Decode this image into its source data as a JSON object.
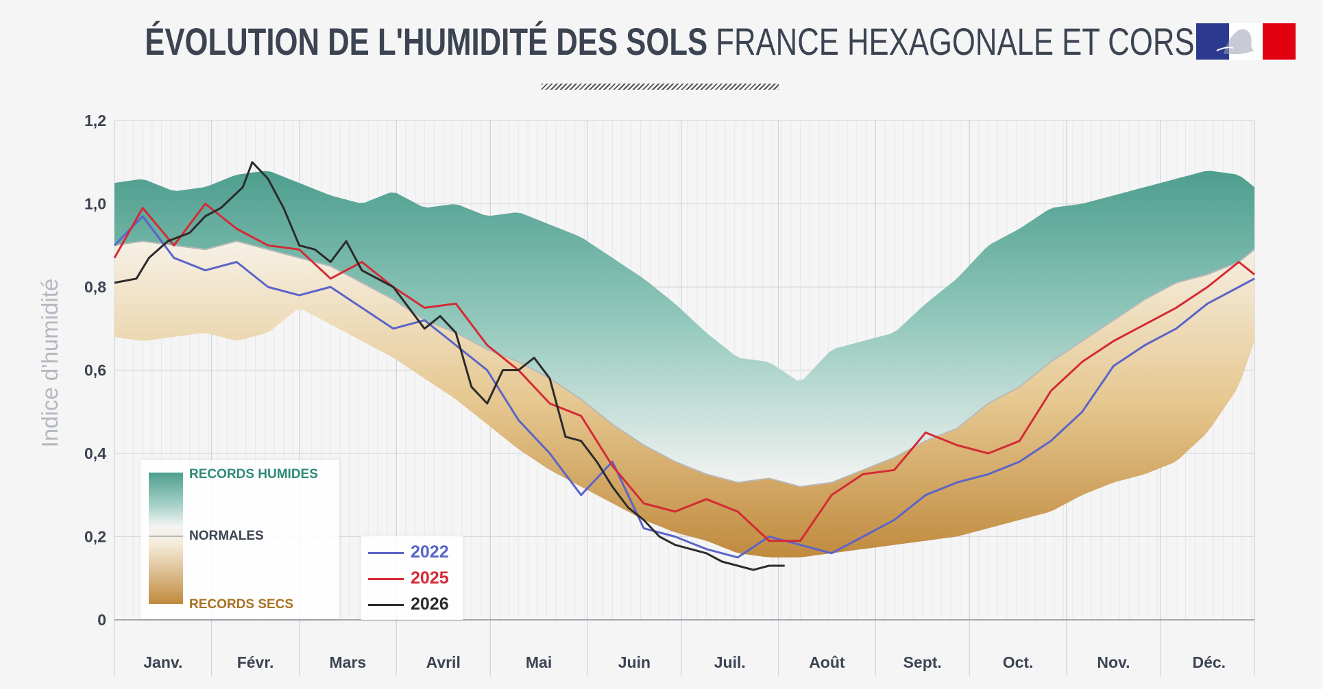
{
  "title": {
    "bold": "ÉVOLUTION DE L'HUMIDITÉ DES SOLS",
    "light": "FRANCE HEXAGONALE ET CORSE"
  },
  "colors": {
    "wet": "#4e9e8e",
    "dry": "#c08a3e",
    "normal": "#b9b9b9",
    "y2022": "#5b64c8",
    "y2025": "#d42a35",
    "y2026": "#2b2b2b",
    "flag_blue": "#2b3a8f",
    "flag_red": "#e1000f"
  },
  "legend_bands": {
    "wet": "RECORDS HUMIDES",
    "normal": "NORMALES",
    "dry": "RECORDS SECS"
  },
  "chart_data": {
    "type": "area",
    "ylabel": "Indice d'humidité",
    "ylim": [
      0,
      1.2
    ],
    "yticks": [
      "0",
      "0,2",
      "0,4",
      "0,6",
      "0,8",
      "1,0",
      "1,2"
    ],
    "months": [
      "Janv.",
      "Févr.",
      "Mars",
      "Avril",
      "Mai",
      "Juin",
      "Juil.",
      "Août",
      "Sept.",
      "Oct.",
      "Nov.",
      "Déc."
    ],
    "x_unit": "day of year",
    "records_wet": {
      "x": [
        1,
        10,
        20,
        30,
        40,
        50,
        60,
        70,
        80,
        90,
        100,
        110,
        120,
        130,
        140,
        150,
        160,
        170,
        180,
        190,
        200,
        210,
        220,
        230,
        240,
        250,
        260,
        270,
        280,
        290,
        300,
        310,
        320,
        330,
        340,
        350,
        360,
        365
      ],
      "y": [
        1.05,
        1.06,
        1.03,
        1.04,
        1.07,
        1.08,
        1.05,
        1.02,
        1.0,
        1.03,
        0.99,
        1.0,
        0.97,
        0.98,
        0.95,
        0.92,
        0.87,
        0.82,
        0.76,
        0.69,
        0.63,
        0.62,
        0.57,
        0.65,
        0.67,
        0.69,
        0.76,
        0.82,
        0.9,
        0.94,
        0.99,
        1.0,
        1.02,
        1.04,
        1.06,
        1.08,
        1.07,
        1.04
      ]
    },
    "records_dry": {
      "x": [
        1,
        10,
        20,
        30,
        40,
        50,
        60,
        70,
        80,
        90,
        100,
        110,
        120,
        130,
        140,
        150,
        160,
        170,
        180,
        190,
        200,
        210,
        220,
        230,
        240,
        250,
        260,
        270,
        280,
        290,
        300,
        310,
        320,
        330,
        340,
        350,
        360,
        365
      ],
      "y": [
        0.68,
        0.67,
        0.68,
        0.69,
        0.67,
        0.69,
        0.75,
        0.71,
        0.67,
        0.63,
        0.58,
        0.53,
        0.47,
        0.41,
        0.36,
        0.32,
        0.28,
        0.24,
        0.21,
        0.19,
        0.16,
        0.15,
        0.15,
        0.16,
        0.17,
        0.18,
        0.19,
        0.2,
        0.22,
        0.24,
        0.26,
        0.3,
        0.33,
        0.35,
        0.38,
        0.45,
        0.56,
        0.67
      ]
    },
    "normal": {
      "x": [
        1,
        10,
        20,
        30,
        40,
        50,
        60,
        70,
        80,
        90,
        100,
        110,
        120,
        130,
        140,
        150,
        160,
        170,
        180,
        190,
        200,
        210,
        220,
        230,
        240,
        250,
        260,
        270,
        280,
        290,
        300,
        310,
        320,
        330,
        340,
        350,
        360,
        365
      ],
      "y": [
        0.9,
        0.91,
        0.9,
        0.89,
        0.91,
        0.89,
        0.87,
        0.85,
        0.81,
        0.77,
        0.72,
        0.69,
        0.65,
        0.62,
        0.58,
        0.53,
        0.47,
        0.42,
        0.38,
        0.35,
        0.33,
        0.34,
        0.32,
        0.33,
        0.36,
        0.39,
        0.43,
        0.46,
        0.52,
        0.56,
        0.62,
        0.67,
        0.72,
        0.77,
        0.81,
        0.83,
        0.86,
        0.89
      ]
    },
    "series": [
      {
        "name": "2022",
        "x": [
          1,
          10,
          20,
          30,
          40,
          50,
          60,
          70,
          80,
          90,
          100,
          110,
          120,
          130,
          140,
          150,
          160,
          170,
          180,
          190,
          200,
          210,
          220,
          230,
          240,
          250,
          260,
          270,
          280,
          290,
          300,
          310,
          320,
          330,
          340,
          350,
          360,
          365
        ],
        "y": [
          0.9,
          0.97,
          0.87,
          0.84,
          0.86,
          0.8,
          0.78,
          0.8,
          0.75,
          0.7,
          0.72,
          0.66,
          0.6,
          0.48,
          0.4,
          0.3,
          0.38,
          0.22,
          0.2,
          0.17,
          0.15,
          0.2,
          0.18,
          0.16,
          0.2,
          0.24,
          0.3,
          0.33,
          0.35,
          0.38,
          0.43,
          0.5,
          0.61,
          0.66,
          0.7,
          0.76,
          0.8,
          0.82
        ]
      },
      {
        "name": "2025",
        "x": [
          1,
          10,
          20,
          30,
          40,
          50,
          60,
          70,
          80,
          90,
          100,
          110,
          120,
          130,
          140,
          150,
          160,
          170,
          180,
          190,
          200,
          210,
          220,
          230,
          240,
          250,
          260,
          270,
          280,
          290,
          300,
          310,
          320,
          330,
          340,
          350,
          360,
          365
        ],
        "y": [
          0.87,
          0.99,
          0.9,
          1.0,
          0.94,
          0.9,
          0.89,
          0.82,
          0.86,
          0.8,
          0.75,
          0.76,
          0.66,
          0.6,
          0.52,
          0.49,
          0.37,
          0.28,
          0.26,
          0.29,
          0.26,
          0.19,
          0.19,
          0.3,
          0.35,
          0.36,
          0.45,
          0.42,
          0.4,
          0.43,
          0.55,
          0.62,
          0.67,
          0.71,
          0.75,
          0.8,
          0.86,
          0.83
        ]
      },
      {
        "name": "2026",
        "x": [
          1,
          8,
          12,
          18,
          25,
          30,
          35,
          42,
          45,
          50,
          55,
          60,
          65,
          70,
          75,
          80,
          90,
          100,
          105,
          110,
          115,
          120,
          125,
          130,
          135,
          140,
          145,
          150,
          155,
          160,
          165,
          170,
          175,
          180,
          185,
          190,
          195,
          200,
          205,
          210,
          215
        ],
        "y": [
          0.81,
          0.82,
          0.87,
          0.91,
          0.93,
          0.97,
          0.99,
          1.04,
          1.1,
          1.06,
          0.99,
          0.9,
          0.89,
          0.86,
          0.91,
          0.84,
          0.8,
          0.7,
          0.73,
          0.69,
          0.56,
          0.52,
          0.6,
          0.6,
          0.63,
          0.58,
          0.44,
          0.43,
          0.38,
          0.32,
          0.27,
          0.24,
          0.2,
          0.18,
          0.17,
          0.16,
          0.14,
          0.13,
          0.12,
          0.13,
          0.13
        ]
      }
    ]
  }
}
